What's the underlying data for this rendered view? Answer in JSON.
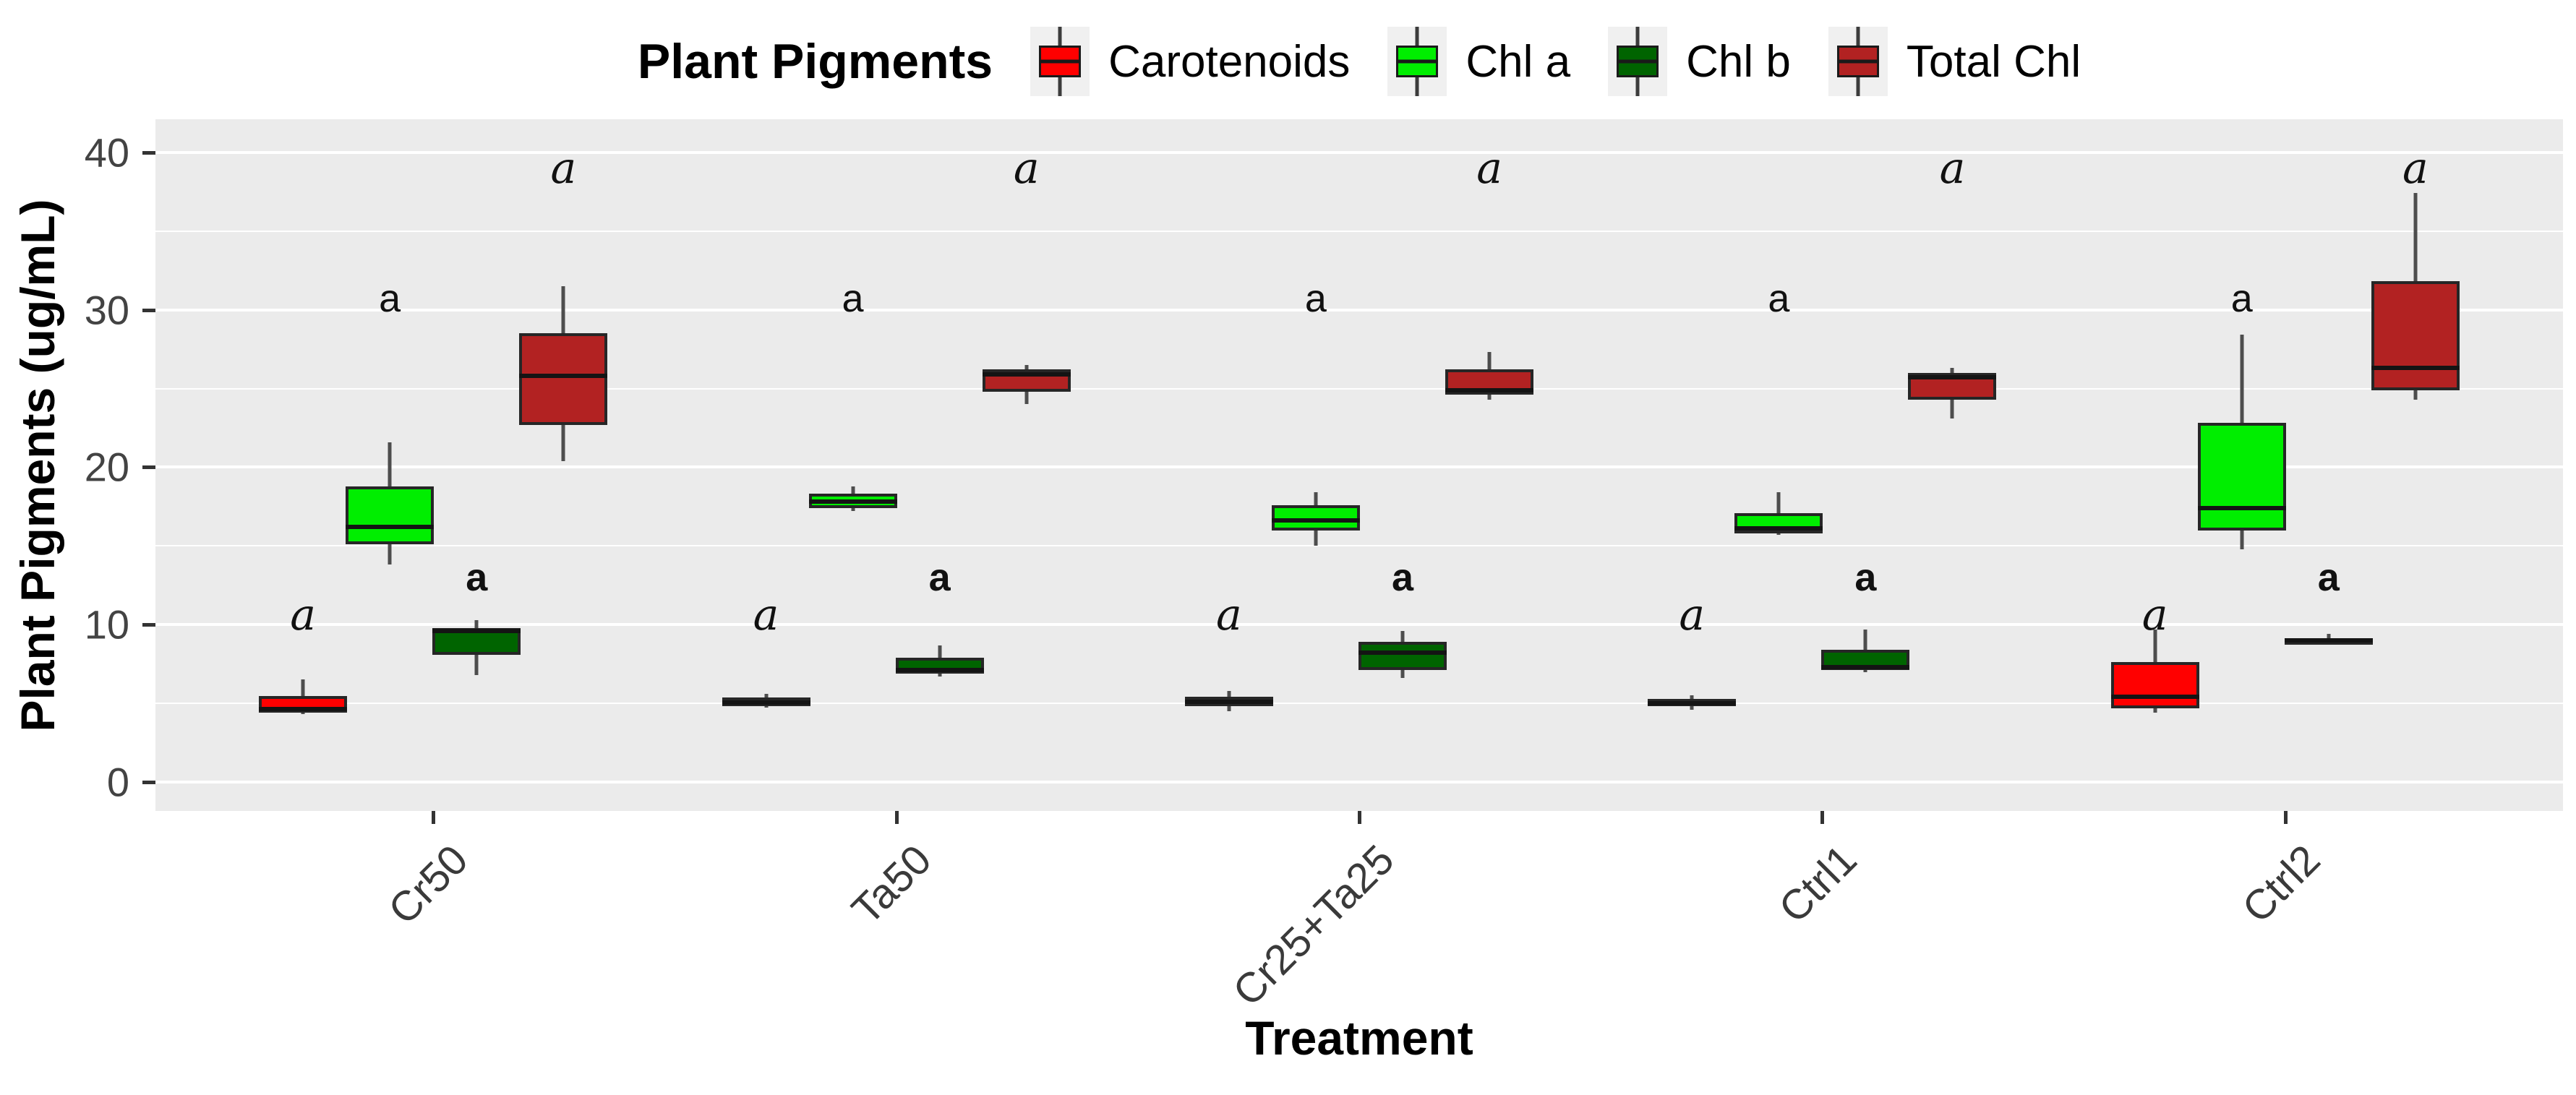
{
  "chart_data": {
    "type": "boxplot",
    "title": "Plant Pigments",
    "xlabel": "Treatment",
    "ylabel": "Plant Pigments (ug/mL)",
    "categories": [
      "Cr50",
      "Ta50",
      "Cr25+Ta25",
      "Ctrl1",
      "Ctrl2"
    ],
    "yticks": [
      0,
      10,
      20,
      30,
      40
    ],
    "minor_yticks": [
      5,
      15,
      25,
      35
    ],
    "ylim": [
      -1.84,
      42.1
    ],
    "legend_position": "top",
    "panel_bg": "#EBEBEB",
    "grid_color": "#FFFFFF",
    "series": [
      {
        "name": "Carotenoids",
        "color": "#FF0000",
        "significance": {
          "letter": "a",
          "style": "italic",
          "y": 10.6
        },
        "boxes": [
          {
            "category": "Cr50",
            "min": 4.35,
            "q1": 4.4,
            "median": 4.65,
            "q3": 5.45,
            "max": 6.5
          },
          {
            "category": "Ta50",
            "min": 4.75,
            "q1": 4.8,
            "median": 5.05,
            "q3": 5.35,
            "max": 5.6
          },
          {
            "category": "Cr25+Ta25",
            "min": 4.5,
            "q1": 4.8,
            "median": 5.1,
            "q3": 5.4,
            "max": 5.8
          },
          {
            "category": "Ctrl1",
            "min": 4.6,
            "q1": 4.8,
            "median": 5.0,
            "q3": 5.3,
            "max": 5.5
          },
          {
            "category": "Ctrl2",
            "min": 4.4,
            "q1": 4.7,
            "median": 5.4,
            "q3": 7.6,
            "max": 9.7
          }
        ]
      },
      {
        "name": "Chl a",
        "color": "#00EE00",
        "significance": {
          "letter": "a",
          "style": "plain",
          "y": 30.7
        },
        "boxes": [
          {
            "category": "Cr50",
            "min": 13.8,
            "q1": 15.1,
            "median": 16.2,
            "q3": 18.8,
            "max": 21.6
          },
          {
            "category": "Ta50",
            "min": 17.2,
            "q1": 17.4,
            "median": 17.8,
            "q3": 18.3,
            "max": 18.8
          },
          {
            "category": "Cr25+Ta25",
            "min": 15.0,
            "q1": 16.0,
            "median": 16.6,
            "q3": 17.6,
            "max": 18.4
          },
          {
            "category": "Ctrl1",
            "min": 15.7,
            "q1": 15.8,
            "median": 16.1,
            "q3": 17.1,
            "max": 18.4
          },
          {
            "category": "Ctrl2",
            "min": 14.8,
            "q1": 16.0,
            "median": 17.4,
            "q3": 22.8,
            "max": 28.4
          }
        ]
      },
      {
        "name": "Chl b",
        "color": "#006400",
        "significance": {
          "letter": "a",
          "style": "bold",
          "y": 13.0
        },
        "boxes": [
          {
            "category": "Cr50",
            "min": 6.8,
            "q1": 8.1,
            "median": 9.6,
            "q3": 9.8,
            "max": 10.3
          },
          {
            "category": "Ta50",
            "min": 6.7,
            "q1": 6.9,
            "median": 7.1,
            "q3": 7.9,
            "max": 8.7
          },
          {
            "category": "Cr25+Ta25",
            "min": 6.6,
            "q1": 7.1,
            "median": 8.2,
            "q3": 8.9,
            "max": 9.6
          },
          {
            "category": "Ctrl1",
            "min": 7.0,
            "q1": 7.1,
            "median": 7.3,
            "q3": 8.4,
            "max": 9.7
          },
          {
            "category": "Ctrl2",
            "min": 8.85,
            "q1": 8.95,
            "median": 9.0,
            "q3": 9.1,
            "max": 9.4
          }
        ]
      },
      {
        "name": "Total Chl",
        "color": "#B22222",
        "significance": {
          "letter": "a",
          "style": "italic",
          "y": 39.0
        },
        "boxes": [
          {
            "category": "Cr50",
            "min": 20.4,
            "q1": 22.7,
            "median": 25.8,
            "q3": 28.5,
            "max": 31.5
          },
          {
            "category": "Ta50",
            "min": 24.0,
            "q1": 24.8,
            "median": 25.9,
            "q3": 26.2,
            "max": 26.5
          },
          {
            "category": "Cr25+Ta25",
            "min": 24.3,
            "q1": 24.6,
            "median": 24.9,
            "q3": 26.2,
            "max": 27.3
          },
          {
            "category": "Ctrl1",
            "min": 23.1,
            "q1": 24.3,
            "median": 25.7,
            "q3": 26.0,
            "max": 26.3
          },
          {
            "category": "Ctrl2",
            "min": 24.3,
            "q1": 24.9,
            "median": 26.3,
            "q3": 31.8,
            "max": 37.4
          }
        ]
      }
    ]
  }
}
